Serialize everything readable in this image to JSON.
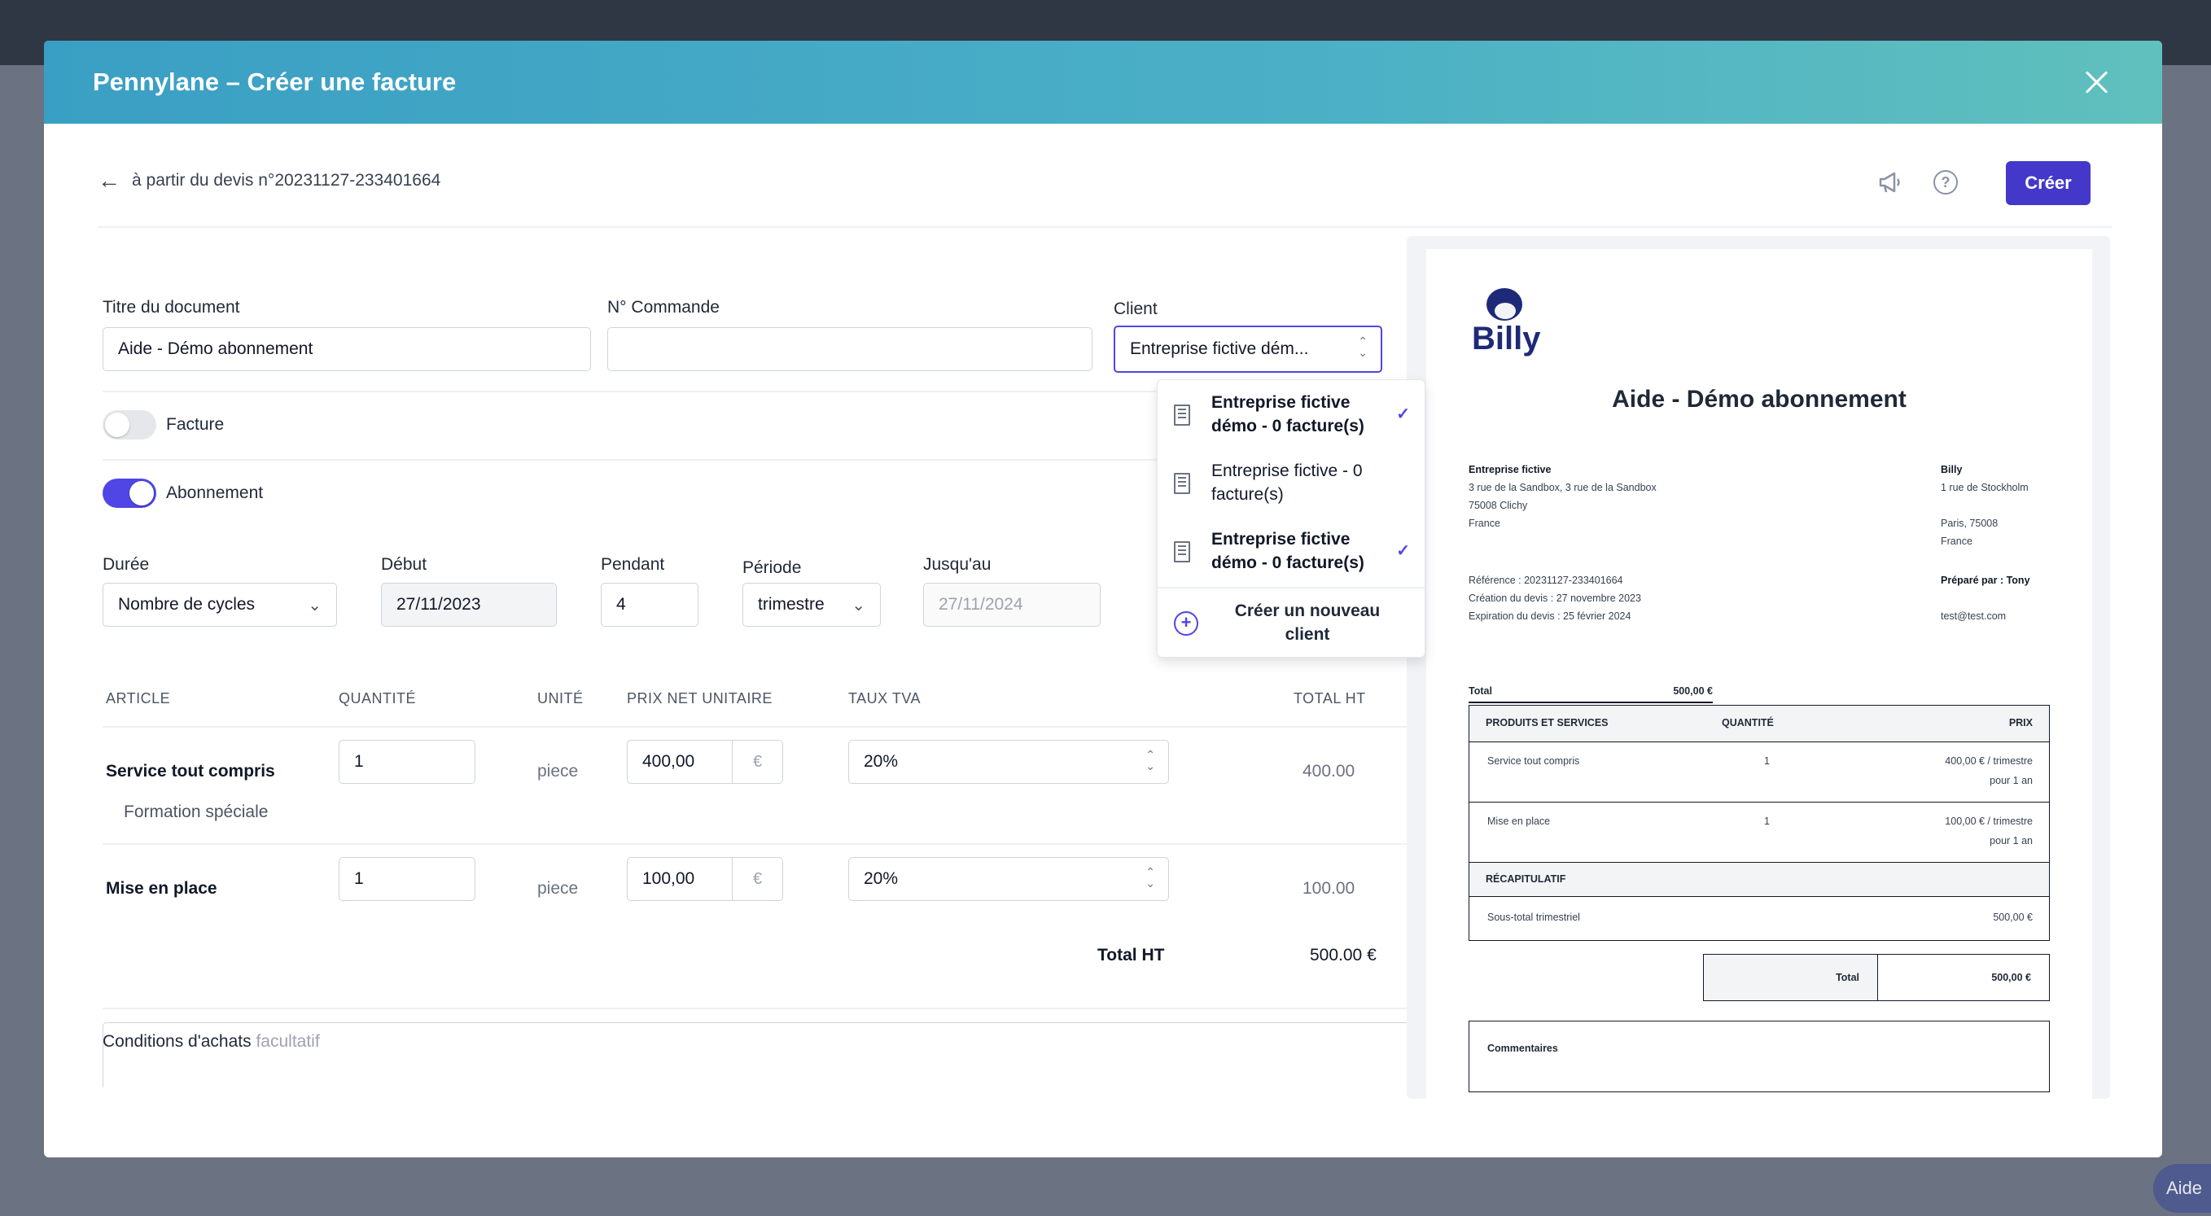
{
  "modal": {
    "title": "Pennylane – Créer une facture"
  },
  "toolbar": {
    "back_text": "à partir du devis n°20231127-233401664",
    "create_label": "Créer"
  },
  "form": {
    "title_label": "Titre du document",
    "title_value": "Aide - Démo abonnement",
    "order_label": "N° Commande",
    "order_value": "",
    "client_label": "Client",
    "client_value": "Entreprise fictive dém...",
    "toggle_invoice": {
      "label": "Facture",
      "on": false
    },
    "toggle_subscription": {
      "label": "Abonnement",
      "on": true
    },
    "duration": {
      "label": "Durée",
      "value": "Nombre de cycles"
    },
    "start": {
      "label": "Début",
      "value": "27/11/2023"
    },
    "during": {
      "label": "Pendant",
      "value": "4"
    },
    "period": {
      "label": "Période",
      "value": "trimestre"
    },
    "until": {
      "label": "Jusqu'au",
      "value": "27/11/2024"
    }
  },
  "table": {
    "headers": [
      "ARTICLE",
      "QUANTITÉ",
      "UNITÉ",
      "PRIX NET UNITAIRE",
      "TAUX TVA",
      "TOTAL HT"
    ],
    "rows": [
      {
        "name": "Service tout compris",
        "description": "Formation spéciale",
        "quantity": "1",
        "unit": "piece",
        "price": "400,00",
        "currency": "€",
        "vat": "20%",
        "total": "400.00"
      },
      {
        "name": "Mise en place",
        "description": "",
        "quantity": "1",
        "unit": "piece",
        "price": "100,00",
        "currency": "€",
        "vat": "20%",
        "total": "100.00"
      }
    ],
    "total_label": "Total HT",
    "total_value": "500.00 €"
  },
  "conditions": {
    "label": "Conditions d'achats",
    "optional": "facultatif"
  },
  "client_dropdown": {
    "items": [
      {
        "line1": "Entreprise fictive",
        "line2": "démo - 0 facture(s)",
        "selected": true
      },
      {
        "line1": "Entreprise fictive - 0",
        "line2": "facture(s)",
        "selected": false
      },
      {
        "line1": "Entreprise fictive",
        "line2": "démo - 0 facture(s)",
        "selected": true
      }
    ],
    "new_client_line1": "Créer un nouveau",
    "new_client_line2": "client"
  },
  "preview": {
    "logo_text": "Billy",
    "title": "Aide - Démo abonnement",
    "client_name": "Entreprise fictive",
    "client_address1": "3 rue de la Sandbox, 3 rue de la Sandbox",
    "client_address2": "75008 Clichy",
    "client_country": "France",
    "company_name": "Billy",
    "company_address1": "1 rue de Stockholm",
    "company_address2": "Paris, 75008",
    "company_country": "France",
    "reference": "Référence : 20231127-233401664",
    "created": "Création du devis : 27 novembre 2023",
    "expiration": "Expiration du devis : 25 février 2024",
    "prepared_by": "Préparé par : Tony",
    "email": "test@test.com",
    "total_label": "Total",
    "total_value": "500,00 €",
    "table_headers": [
      "PRODUITS ET SERVICES",
      "QUANTITÉ",
      "PRIX"
    ],
    "rows": [
      {
        "name": "Service tout compris",
        "qty": "1",
        "price1": "400,00 € / trimestre",
        "price2": "pour 1 an"
      },
      {
        "name": "Mise en place",
        "qty": "1",
        "price1": "100,00 € / trimestre",
        "price2": "pour 1 an"
      }
    ],
    "recap_label": "RÉCAPITULATIF",
    "subtotal_label": "Sous-total trimestriel",
    "subtotal_value": "500,00 €",
    "grand_total_label": "Total",
    "grand_total_value": "500,00 €",
    "comments_label": "Commentaires"
  },
  "background": {
    "help_label": "Aide"
  },
  "colors": {
    "header_start": "#3a9fc4",
    "header_end": "#60c0bd",
    "primary": "#4338ca",
    "toggle_on": "#4f46e5"
  }
}
